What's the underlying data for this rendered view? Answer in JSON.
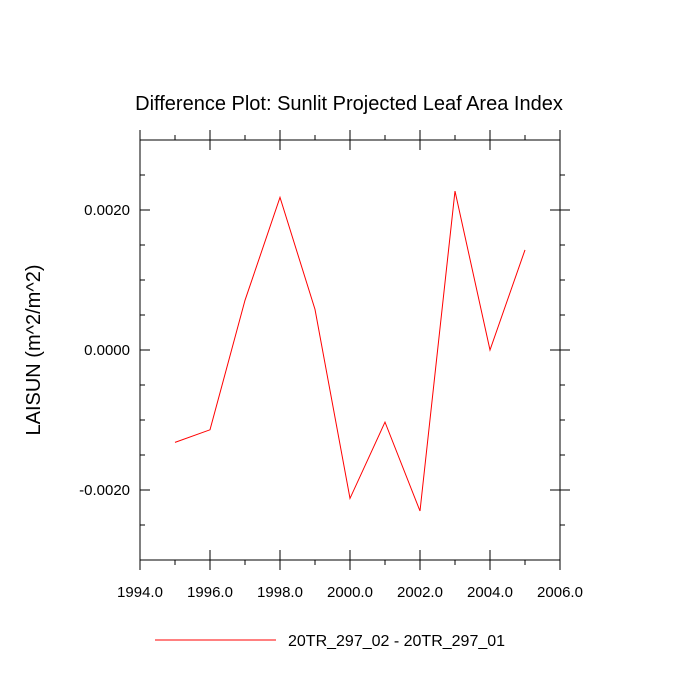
{
  "chart_data": {
    "type": "line",
    "title": "Difference Plot: Sunlit Projected Leaf Area Index",
    "xlabel": "",
    "ylabel": "LAISUN  (m^2/m^2)",
    "xlim": [
      1994.0,
      2006.0
    ],
    "ylim": [
      -0.003,
      0.003
    ],
    "x_ticks": [
      1994.0,
      1996.0,
      1998.0,
      2000.0,
      2002.0,
      2004.0,
      2006.0
    ],
    "x_tick_labels": [
      "1994.0",
      "1996.0",
      "1998.0",
      "2000.0",
      "2002.0",
      "2004.0",
      "2006.0"
    ],
    "y_ticks": [
      -0.002,
      0.0,
      0.002
    ],
    "y_tick_labels": [
      "-0.0020",
      "0.0000",
      "0.0020"
    ],
    "grid": false,
    "legend_position": "bottom-center",
    "series": [
      {
        "name": "20TR_297_02 - 20TR_297_01",
        "color": "#ff0000",
        "x": [
          1995,
          1996,
          1997,
          1998,
          1999,
          2000,
          2001,
          2002,
          2003,
          2004,
          2005
        ],
        "y": [
          -0.00132,
          -0.00114,
          0.00071,
          0.00218,
          0.00058,
          -0.00212,
          -0.00103,
          -0.0023,
          0.00227,
          0.0,
          0.00143
        ]
      }
    ]
  }
}
